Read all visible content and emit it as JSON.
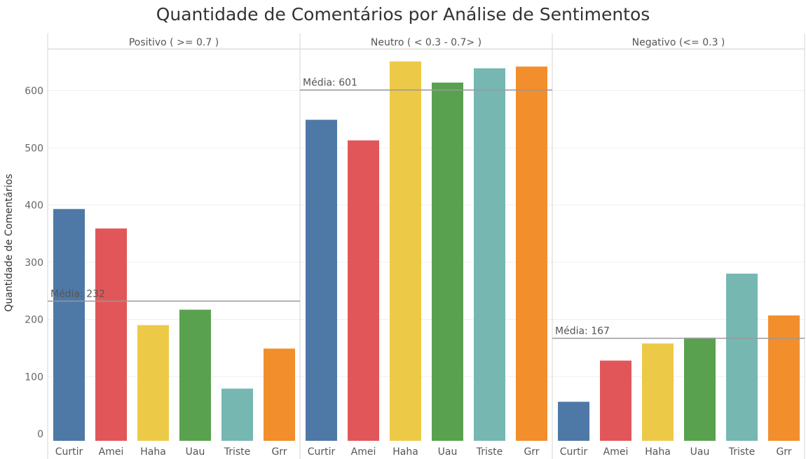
{
  "chart_data": {
    "type": "bar",
    "title": "Quantidade de Comentários por Análise de Sentimentos",
    "ylabel": "Quantidade de Comentários",
    "ylim": [
      0,
      680
    ],
    "yticks": [
      0,
      100,
      200,
      300,
      400,
      500,
      600
    ],
    "grid": true,
    "categories": [
      "Curtir",
      "Amei",
      "Haha",
      "Uau",
      "Triste",
      "Grr"
    ],
    "category_colors": [
      "#4e79a7",
      "#e15759",
      "#edc948",
      "#59a14f",
      "#76b7b2",
      "#f28e2b"
    ],
    "average_prefix": "Média: ",
    "panels": [
      {
        "label": "Positivo ( >= 0.7 )",
        "values": [
          393,
          359,
          190,
          217,
          79,
          149
        ],
        "average": 232
      },
      {
        "label": "Neutro ( < 0.3 - 0.7> )",
        "values": [
          549,
          513,
          651,
          614,
          639,
          642
        ],
        "average": 601
      },
      {
        "label": "Negativo (<= 0.3 )",
        "values": [
          56,
          128,
          158,
          168,
          280,
          207
        ],
        "average": 167
      }
    ]
  }
}
